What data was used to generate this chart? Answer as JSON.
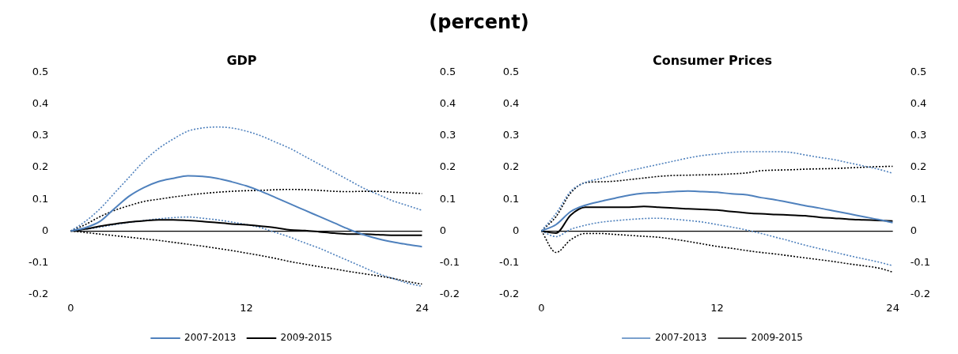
{
  "chart_data": [
    {
      "type": "line",
      "title": "GDP",
      "annotations": [
        "(percent)"
      ],
      "x": [
        0,
        1,
        2,
        3,
        4,
        5,
        6,
        7,
        8,
        9,
        10,
        11,
        12,
        13,
        14,
        15,
        16,
        17,
        18,
        19,
        20,
        21,
        22,
        23,
        24
      ],
      "xlim": [
        0,
        24
      ],
      "xticks": [
        0,
        12,
        24
      ],
      "ylim": [
        -0.2,
        0.5
      ],
      "yticks": [
        -0.2,
        -0.1,
        0,
        0.1,
        0.2,
        0.3,
        0.4,
        0.5
      ],
      "y2lim": [
        -0.2,
        0.5
      ],
      "y2ticks": [
        -0.2,
        -0.1,
        0,
        0.1,
        0.2,
        0.3,
        0.4,
        0.5
      ],
      "legend": "bottom",
      "series": [
        {
          "name": "2007-2013",
          "color": "#4f81bd",
          "line_style": "solid",
          "values": [
            0,
            0.01,
            0.03,
            0.071,
            0.11,
            0.137,
            0.156,
            0.166,
            0.174,
            0.172,
            0.166,
            0.155,
            0.142,
            0.125,
            0.105,
            0.085,
            0.065,
            0.045,
            0.025,
            0.005,
            -0.012,
            -0.025,
            -0.035,
            -0.043,
            -0.05
          ]
        },
        {
          "name": "2009-2015",
          "color": "#000000",
          "line_style": "solid",
          "values": [
            0,
            0.006,
            0.015,
            0.022,
            0.028,
            0.032,
            0.035,
            0.035,
            0.033,
            0.03,
            0.026,
            0.022,
            0.019,
            0.015,
            0.01,
            0.003,
            0.001,
            -0.003,
            -0.007,
            -0.01,
            -0.01,
            -0.012,
            -0.014,
            -0.014,
            -0.014
          ]
        },
        {
          "color": "#4f81bd",
          "line_style": "dotted",
          "values": [
            0,
            0.03,
            0.07,
            0.12,
            0.17,
            0.22,
            0.26,
            0.29,
            0.315,
            0.325,
            0.328,
            0.325,
            0.315,
            0.3,
            0.28,
            0.26,
            0.235,
            0.21,
            0.185,
            0.16,
            0.135,
            0.115,
            0.095,
            0.08,
            0.065
          ]
        },
        {
          "color": "#4f81bd",
          "line_style": "dotted",
          "values": [
            0,
            0.005,
            0.012,
            0.02,
            0.027,
            0.033,
            0.038,
            0.042,
            0.044,
            0.04,
            0.035,
            0.028,
            0.02,
            0.01,
            -0.005,
            -0.02,
            -0.038,
            -0.055,
            -0.075,
            -0.095,
            -0.115,
            -0.135,
            -0.15,
            -0.165,
            -0.175
          ]
        },
        {
          "color": "#000000",
          "line_style": "dotted",
          "values": [
            0,
            0.02,
            0.045,
            0.065,
            0.08,
            0.093,
            0.1,
            0.107,
            0.113,
            0.118,
            0.122,
            0.125,
            0.127,
            0.128,
            0.13,
            0.131,
            0.13,
            0.128,
            0.125,
            0.124,
            0.125,
            0.125,
            0.122,
            0.12,
            0.118
          ]
        },
        {
          "color": "#000000",
          "line_style": "dotted",
          "values": [
            0,
            -0.005,
            -0.01,
            -0.015,
            -0.02,
            -0.025,
            -0.03,
            -0.036,
            -0.042,
            -0.048,
            -0.055,
            -0.062,
            -0.07,
            -0.078,
            -0.087,
            -0.097,
            -0.105,
            -0.113,
            -0.12,
            -0.128,
            -0.135,
            -0.142,
            -0.15,
            -0.16,
            -0.168
          ]
        }
      ]
    },
    {
      "type": "line",
      "title": "Consumer Prices",
      "x": [
        0,
        1,
        2,
        3,
        4,
        5,
        6,
        7,
        8,
        9,
        10,
        11,
        12,
        13,
        14,
        15,
        16,
        17,
        18,
        19,
        20,
        21,
        22,
        23,
        24
      ],
      "xlim": [
        0,
        24
      ],
      "xticks": [
        0,
        12,
        24
      ],
      "ylim": [
        -0.2,
        0.5
      ],
      "yticks": [
        -0.2,
        -0.1,
        0,
        0.1,
        0.2,
        0.3,
        0.4,
        0.5
      ],
      "y2lim": [
        -0.2,
        0.5
      ],
      "y2ticks": [
        -0.2,
        -0.1,
        0,
        0.1,
        0.2,
        0.3,
        0.4,
        0.5
      ],
      "legend": "bottom",
      "series": [
        {
          "color": "#4f81bd",
          "line_style": "solid",
          "values": [
            0,
            0.02,
            0.061,
            0.081,
            0.093,
            0.103,
            0.113,
            0.119,
            0.121,
            0.124,
            0.126,
            0.124,
            0.122,
            0.117,
            0.114,
            0.105,
            0.098,
            0.089,
            0.08,
            0.072,
            0.063,
            0.054,
            0.045,
            0.036,
            0.026
          ]
        },
        {
          "color": "#000000",
          "line_style": "solid",
          "values": [
            0,
            -0.007,
            0.05,
            0.075,
            0.075,
            0.075,
            0.075,
            0.077,
            0.075,
            0.072,
            0.07,
            0.068,
            0.066,
            0.061,
            0.057,
            0.054,
            0.052,
            0.05,
            0.048,
            0.043,
            0.04,
            0.037,
            0.035,
            0.033,
            0.031
          ]
        },
        {
          "name": "2007-2013",
          "color": "#4f81bd",
          "line_style": "dotted",
          "values": [
            0,
            0.055,
            0.125,
            0.153,
            0.165,
            0.178,
            0.19,
            0.2,
            0.21,
            0.22,
            0.23,
            0.238,
            0.243,
            0.248,
            0.25,
            0.25,
            0.25,
            0.248,
            0.24,
            0.232,
            0.225,
            0.215,
            0.205,
            0.195,
            0.182
          ]
        },
        {
          "color": "#4f81bd",
          "line_style": "dotted",
          "values": [
            0,
            -0.018,
            0.005,
            0.018,
            0.027,
            0.032,
            0.036,
            0.039,
            0.04,
            0.037,
            0.033,
            0.028,
            0.02,
            0.012,
            0.003,
            -0.008,
            -0.02,
            -0.032,
            -0.045,
            -0.056,
            -0.067,
            -0.078,
            -0.088,
            -0.098,
            -0.11
          ]
        },
        {
          "name": "2009-2015",
          "color": "#000000",
          "line_style": "dotted",
          "values": [
            0,
            0.045,
            0.12,
            0.152,
            0.155,
            0.157,
            0.162,
            0.167,
            0.172,
            0.175,
            0.176,
            0.177,
            0.178,
            0.18,
            0.183,
            0.19,
            0.192,
            0.193,
            0.195,
            0.196,
            0.197,
            0.199,
            0.201,
            0.203,
            0.204
          ]
        },
        {
          "color": "#000000",
          "line_style": "dotted",
          "values": [
            0,
            -0.068,
            -0.028,
            -0.008,
            -0.008,
            -0.011,
            -0.014,
            -0.017,
            -0.02,
            -0.026,
            -0.033,
            -0.041,
            -0.049,
            -0.055,
            -0.062,
            -0.068,
            -0.073,
            -0.079,
            -0.085,
            -0.091,
            -0.097,
            -0.104,
            -0.11,
            -0.117,
            -0.13
          ]
        }
      ]
    }
  ]
}
